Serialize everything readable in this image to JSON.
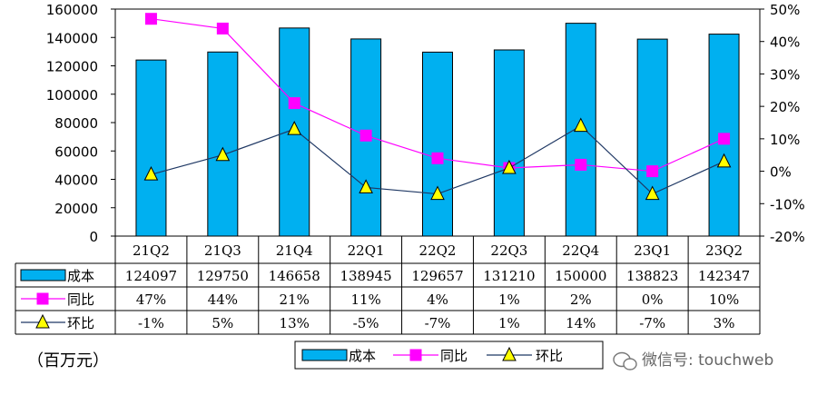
{
  "chart_data": {
    "type": "bar",
    "categories": [
      "21Q2",
      "21Q3",
      "21Q4",
      "22Q1",
      "22Q2",
      "22Q3",
      "22Q4",
      "23Q1",
      "23Q2"
    ],
    "series": [
      {
        "name": "成本",
        "kind": "bar",
        "axis": "left",
        "color": "#00B0F0",
        "values": [
          124097,
          129750,
          146658,
          138945,
          129657,
          131210,
          150000,
          138823,
          142347
        ],
        "labels": [
          "124097",
          "129750",
          "146658",
          "138945",
          "129657",
          "131210",
          "150000",
          "138823",
          "142347"
        ]
      },
      {
        "name": "同比",
        "kind": "line",
        "axis": "right",
        "color": "#FF00FF",
        "marker": "square",
        "values": [
          47,
          44,
          21,
          11,
          4,
          1,
          2,
          0,
          10
        ],
        "labels": [
          "47%",
          "44%",
          "21%",
          "11%",
          "4%",
          "1%",
          "2%",
          "0%",
          "10%"
        ]
      },
      {
        "name": "环比",
        "kind": "line",
        "axis": "right",
        "color": "#1F3864",
        "marker": "triangle",
        "marker_color": "#FFFF00",
        "values": [
          -1,
          5,
          13,
          -5,
          -7,
          1,
          14,
          -7,
          3
        ],
        "labels": [
          "-1%",
          "5%",
          "13%",
          "-5%",
          "-7%",
          "1%",
          "14%",
          "-7%",
          "3%"
        ]
      }
    ],
    "y_left": {
      "min": 0,
      "max": 160000,
      "ticks": [
        "0",
        "20000",
        "40000",
        "60000",
        "80000",
        "100000",
        "120000",
        "140000",
        "160000"
      ]
    },
    "y_right": {
      "min": -20,
      "max": 50,
      "ticks": [
        "-20%",
        "-10%",
        "0%",
        "10%",
        "20%",
        "30%",
        "40%",
        "50%"
      ]
    },
    "unit_label": "（百万元）",
    "legend": {
      "position": "bottom",
      "items": [
        "成本",
        "同比",
        "环比"
      ]
    },
    "data_table": true,
    "grid": false
  },
  "watermark": {
    "text": "微信号: touchweb",
    "icon": "wechat-icon"
  }
}
